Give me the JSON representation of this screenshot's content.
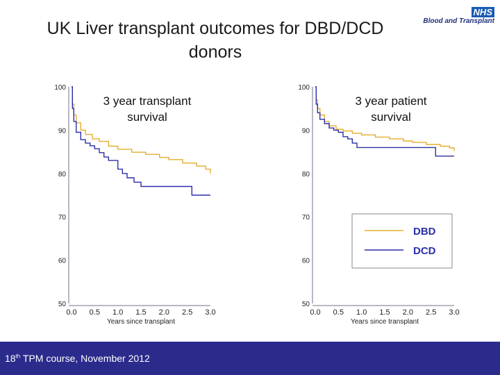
{
  "slide": {
    "title": "UK Liver transplant outcomes for DBD/DCD donors",
    "logo": {
      "badge": "NHS",
      "name": "Blood and Transplant"
    },
    "footer": {
      "ordinal_number": "18",
      "ordinal_suffix": "th",
      "text": " TPM course, November 2012"
    }
  },
  "colors": {
    "dbd": "#e6ad2e",
    "dcd": "#2b2fa8",
    "axis": "#b8b8c4",
    "footer_bg": "#2b2b8c"
  },
  "chart_data": [
    {
      "type": "line",
      "title_lines": [
        "3 year transplant",
        "survival"
      ],
      "xlabel": "Years since transplant",
      "ylabel": "",
      "xlim": [
        0,
        3
      ],
      "ylim": [
        50,
        100
      ],
      "xticks": [
        "0.0",
        "0.5",
        "1.0",
        "1.5",
        "2.0",
        "2.5",
        "3.0"
      ],
      "yticks": [
        "100",
        "90",
        "80",
        "70",
        "60",
        "50"
      ],
      "series": [
        {
          "name": "DBD",
          "x": [
            0,
            0.02,
            0.05,
            0.1,
            0.2,
            0.3,
            0.45,
            0.6,
            0.8,
            1.0,
            1.3,
            1.6,
            1.9,
            2.1,
            2.4,
            2.7,
            2.9,
            3.0
          ],
          "y": [
            100,
            96,
            93.5,
            91.7,
            90,
            89,
            88,
            87.4,
            86.3,
            85.6,
            84.9,
            84.4,
            83.7,
            83.2,
            82.4,
            81.7,
            81,
            80
          ]
        },
        {
          "name": "DCD",
          "x": [
            0,
            0.02,
            0.05,
            0.1,
            0.2,
            0.3,
            0.4,
            0.5,
            0.6,
            0.7,
            0.8,
            0.9,
            1.0,
            1.1,
            1.2,
            1.35,
            1.5,
            1.8,
            2.0,
            2.2,
            2.5,
            2.6,
            3.0
          ],
          "y": [
            100,
            95,
            92,
            89.5,
            87.8,
            87,
            86.4,
            85.7,
            84.8,
            83.8,
            83,
            83,
            81,
            80,
            79,
            78,
            77,
            77,
            77,
            77,
            77,
            75,
            75
          ]
        }
      ]
    },
    {
      "type": "line",
      "title_lines": [
        "3 year patient",
        "survival"
      ],
      "xlabel": "Years since transplant",
      "ylabel": "",
      "xlim": [
        0,
        3
      ],
      "ylim": [
        50,
        100
      ],
      "xticks": [
        "0.0",
        "0.5",
        "1.0",
        "1.5",
        "2.0",
        "2.5",
        "3.0"
      ],
      "yticks": [
        "100",
        "90",
        "80",
        "70",
        "60",
        "50"
      ],
      "legend": {
        "position": "center-right",
        "entries": [
          "DBD",
          "DCD"
        ]
      },
      "series": [
        {
          "name": "DBD",
          "x": [
            0,
            0.02,
            0.05,
            0.1,
            0.2,
            0.3,
            0.45,
            0.6,
            0.8,
            1.0,
            1.3,
            1.6,
            1.9,
            2.1,
            2.4,
            2.7,
            2.9,
            3.0
          ],
          "y": [
            100,
            97,
            95,
            93.5,
            92,
            91,
            90.2,
            89.8,
            89.3,
            88.9,
            88.4,
            88,
            87.5,
            87.2,
            86.7,
            86.3,
            85.9,
            85.2
          ]
        },
        {
          "name": "DCD",
          "x": [
            0,
            0.02,
            0.05,
            0.1,
            0.2,
            0.3,
            0.4,
            0.5,
            0.6,
            0.7,
            0.8,
            0.9,
            1.0,
            1.2,
            1.5,
            1.8,
            2.1,
            2.4,
            2.5,
            2.6,
            2.7,
            3.0
          ],
          "y": [
            100,
            96,
            94,
            92.5,
            91.5,
            90.5,
            90,
            89.5,
            88.5,
            88,
            87,
            86,
            86,
            86,
            86,
            86,
            86,
            86,
            86,
            84,
            84,
            84
          ]
        }
      ]
    }
  ]
}
